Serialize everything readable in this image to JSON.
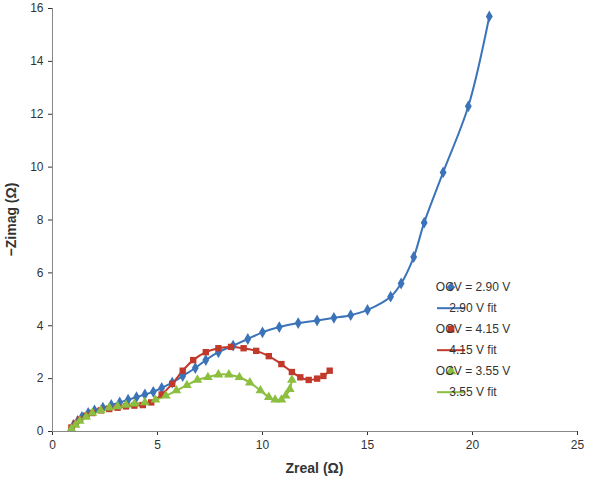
{
  "chart_data": {
    "type": "scatter",
    "x_label": "Zreal (Ω)",
    "y_label": "−Zimag (Ω)",
    "xlim": [
      0,
      25
    ],
    "xticks": [
      0,
      5,
      10,
      15,
      20,
      25
    ],
    "ylim": [
      0,
      16
    ],
    "yticks": [
      0,
      2,
      4,
      6,
      8,
      10,
      12,
      14,
      16
    ],
    "grid": false,
    "legend": "right",
    "series": [
      {
        "name": "OCV = 2.90 V",
        "type": "scatter",
        "marker": "diamond",
        "color": "#3b73b9",
        "x": [
          0.9,
          1.0,
          1.2,
          1.4,
          1.7,
          2.0,
          2.4,
          2.8,
          3.2,
          3.6,
          4.0,
          4.4,
          4.8,
          5.2,
          5.7,
          6.2,
          6.8,
          7.3,
          7.9,
          8.6,
          9.3,
          10.0,
          10.8,
          11.7,
          12.6,
          13.4,
          14.2,
          15.0,
          16.1,
          16.6,
          17.2,
          17.7,
          18.6,
          19.8,
          20.8
        ],
        "values": [
          0.1,
          0.25,
          0.4,
          0.55,
          0.7,
          0.8,
          0.9,
          1.0,
          1.1,
          1.2,
          1.3,
          1.4,
          1.5,
          1.65,
          1.85,
          2.1,
          2.4,
          2.7,
          3.0,
          3.25,
          3.5,
          3.75,
          3.95,
          4.1,
          4.2,
          4.3,
          4.4,
          4.6,
          5.1,
          5.6,
          6.6,
          7.9,
          9.8,
          12.3,
          15.7
        ]
      },
      {
        "name": "2.90 V fit",
        "type": "line",
        "color": "#3b73b9",
        "x": [
          0.9,
          1.0,
          1.2,
          1.4,
          1.7,
          2.0,
          2.4,
          2.8,
          3.2,
          3.6,
          4.0,
          4.4,
          4.8,
          5.2,
          5.7,
          6.2,
          6.8,
          7.3,
          7.9,
          8.6,
          9.3,
          10.0,
          10.8,
          11.7,
          12.6,
          13.4,
          14.2,
          15.0,
          16.1,
          16.6,
          17.2,
          17.7,
          18.6,
          19.8,
          20.8
        ],
        "values": [
          0.1,
          0.25,
          0.4,
          0.55,
          0.7,
          0.8,
          0.9,
          1.0,
          1.1,
          1.2,
          1.3,
          1.4,
          1.5,
          1.65,
          1.85,
          2.1,
          2.4,
          2.7,
          3.0,
          3.25,
          3.5,
          3.75,
          3.95,
          4.1,
          4.2,
          4.3,
          4.4,
          4.6,
          5.1,
          5.6,
          6.6,
          7.9,
          9.8,
          12.3,
          15.7
        ]
      },
      {
        "name": "OCV = 4.15 V",
        "type": "scatter",
        "marker": "square",
        "color": "#c0392b",
        "x": [
          0.9,
          1.1,
          1.3,
          1.6,
          1.9,
          2.3,
          2.7,
          3.1,
          3.5,
          3.9,
          4.3,
          4.7,
          5.2,
          5.7,
          6.2,
          6.7,
          7.3,
          7.9,
          8.5,
          9.1,
          9.7,
          10.3,
          10.9,
          11.4,
          11.8,
          12.2,
          12.6,
          12.9,
          13.2
        ],
        "values": [
          0.15,
          0.3,
          0.45,
          0.6,
          0.7,
          0.8,
          0.85,
          0.9,
          0.95,
          0.98,
          1.0,
          1.1,
          1.4,
          1.8,
          2.3,
          2.7,
          3.0,
          3.15,
          3.2,
          3.15,
          3.05,
          2.85,
          2.55,
          2.25,
          2.05,
          1.95,
          2.0,
          2.1,
          2.3
        ]
      },
      {
        "name": "4.15 V fit",
        "type": "line",
        "color": "#c0392b",
        "x": [
          0.9,
          1.1,
          1.3,
          1.6,
          1.9,
          2.3,
          2.7,
          3.1,
          3.5,
          3.9,
          4.3,
          4.7,
          5.2,
          5.7,
          6.2,
          6.7,
          7.3,
          7.9,
          8.5,
          9.1,
          9.7,
          10.3,
          10.9,
          11.4,
          11.8,
          12.2,
          12.6,
          12.9,
          13.2
        ],
        "values": [
          0.15,
          0.3,
          0.45,
          0.6,
          0.7,
          0.8,
          0.85,
          0.9,
          0.95,
          0.98,
          1.0,
          1.1,
          1.4,
          1.8,
          2.3,
          2.7,
          3.0,
          3.15,
          3.2,
          3.15,
          3.05,
          2.85,
          2.55,
          2.25,
          2.05,
          1.95,
          2.0,
          2.1,
          2.3
        ]
      },
      {
        "name": "OCV = 3.55 V",
        "type": "scatter",
        "marker": "triangle",
        "color": "#8cbf3f",
        "x": [
          0.9,
          1.1,
          1.3,
          1.6,
          1.9,
          2.3,
          2.7,
          3.1,
          3.5,
          3.9,
          4.4,
          4.9,
          5.4,
          5.9,
          6.4,
          6.9,
          7.4,
          7.9,
          8.4,
          8.9,
          9.4,
          9.9,
          10.3,
          10.6,
          10.9,
          11.1,
          11.3,
          11.4
        ],
        "values": [
          0.1,
          0.25,
          0.4,
          0.55,
          0.7,
          0.8,
          0.9,
          0.95,
          1.0,
          1.05,
          1.1,
          1.2,
          1.35,
          1.55,
          1.75,
          1.95,
          2.05,
          2.15,
          2.15,
          2.05,
          1.85,
          1.55,
          1.3,
          1.2,
          1.2,
          1.35,
          1.6,
          1.95
        ]
      },
      {
        "name": "3.55 V fit",
        "type": "line",
        "color": "#8cbf3f",
        "x": [
          0.9,
          1.1,
          1.3,
          1.6,
          1.9,
          2.3,
          2.7,
          3.1,
          3.5,
          3.9,
          4.4,
          4.9,
          5.4,
          5.9,
          6.4,
          6.9,
          7.4,
          7.9,
          8.4,
          8.9,
          9.4,
          9.9,
          10.3,
          10.6,
          10.9,
          11.1,
          11.3,
          11.4
        ],
        "values": [
          0.1,
          0.25,
          0.4,
          0.55,
          0.7,
          0.8,
          0.9,
          0.95,
          1.0,
          1.05,
          1.1,
          1.2,
          1.35,
          1.55,
          1.75,
          1.95,
          2.05,
          2.15,
          2.15,
          2.05,
          1.85,
          1.55,
          1.3,
          1.2,
          1.2,
          1.35,
          1.6,
          1.95
        ]
      }
    ]
  }
}
